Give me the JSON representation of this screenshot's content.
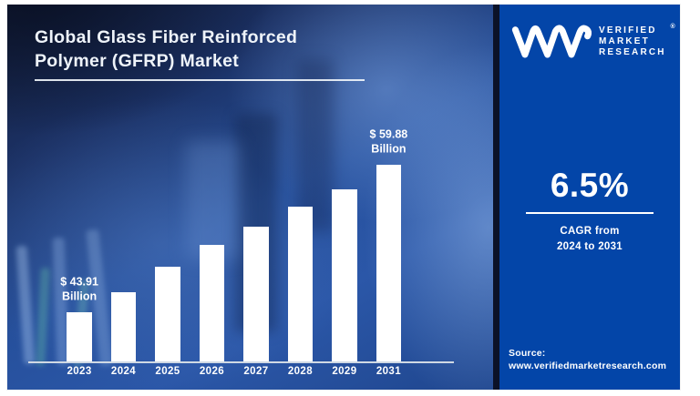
{
  "title": {
    "line1": "Global Glass Fiber Reinforced",
    "line2": "Polymer (GFRP) Market"
  },
  "brand": {
    "logo_icon": "vmr-monogram",
    "name_lines": [
      "VERIFIED",
      "MARKET",
      "RESEARCH"
    ],
    "registered_mark": "®"
  },
  "stat": {
    "value": "6.5%",
    "caption_line1": "CAGR from",
    "caption_line2": "2024 to 2031"
  },
  "source": {
    "label": "Source:",
    "url": "www.verifiedmarketresearch.com"
  },
  "colors": {
    "panel_blue": "#0345a8",
    "divider_navy": "#0b1228",
    "bar_white": "#ffffff",
    "axis_gray": "#d0d9e4",
    "title_white": "#eef3f9"
  },
  "chart_data": {
    "type": "bar",
    "title": "Global Glass Fiber Reinforced Polymer (GFRP) Market",
    "unit": "USD Billion",
    "categories": [
      "2023",
      "2024",
      "2025",
      "2026",
      "2027",
      "2028",
      "2029",
      "2031"
    ],
    "values": [
      43.91,
      46.1,
      48.8,
      51.2,
      53.1,
      55.3,
      57.2,
      59.88
    ],
    "value_labels": [
      {
        "category": "2023",
        "lines": [
          "$ 43.91",
          "Billion"
        ]
      },
      {
        "category": "2031",
        "lines": [
          "$ 59.88",
          "Billion"
        ]
      }
    ],
    "xlabel": "",
    "ylabel": "",
    "ylim_estimate": [
      38,
      62
    ],
    "grid": false,
    "legend": false,
    "bar_color": "#ffffff"
  }
}
